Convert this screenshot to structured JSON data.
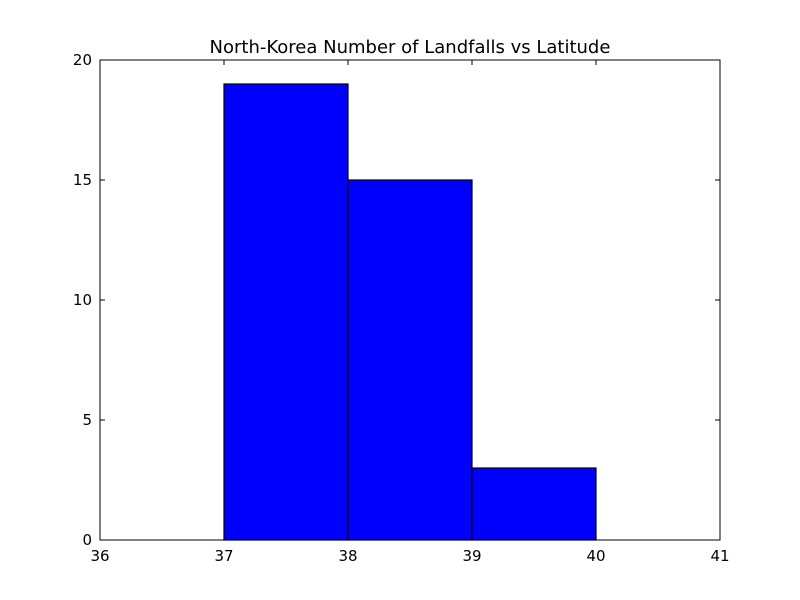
{
  "chart_data": {
    "type": "bar",
    "title": "North-Korea Number of Landfalls vs Latitude",
    "xlabel": "",
    "ylabel": "",
    "xlim": [
      36,
      41
    ],
    "ylim": [
      0,
      20
    ],
    "x_ticks": [
      "36",
      "37",
      "38",
      "39",
      "40",
      "41"
    ],
    "y_ticks": [
      "0",
      "5",
      "10",
      "15",
      "20"
    ],
    "bins": [
      {
        "start": 36,
        "end": 37,
        "value": 0
      },
      {
        "start": 37,
        "end": 38,
        "value": 19
      },
      {
        "start": 38,
        "end": 39,
        "value": 15
      },
      {
        "start": 39,
        "end": 40,
        "value": 3
      }
    ],
    "bar_color": "#0000ff",
    "edge_color": "#000000",
    "grid": false
  }
}
